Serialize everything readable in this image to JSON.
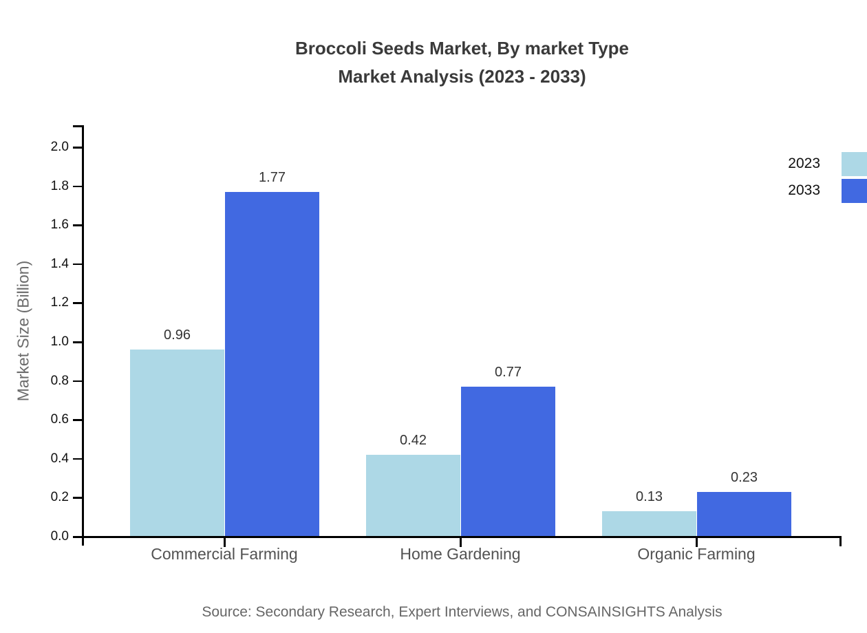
{
  "title": {
    "line1": "Broccoli Seeds Market, By market Type",
    "line2": "Market Analysis (2023 - 2033)"
  },
  "source": "Source: Secondary Research, Expert Interviews, and CONSAINSIGHTS Analysis",
  "chart_data": {
    "type": "bar",
    "title": "Broccoli Seeds Market, By market Type Market Analysis (2023 - 2033)",
    "categories": [
      "Commercial Farming",
      "Home Gardening",
      "Organic Farming"
    ],
    "series": [
      {
        "name": "2023",
        "color": "#ADD8E6",
        "values": [
          0.96,
          0.42,
          0.13
        ]
      },
      {
        "name": "2033",
        "color": "#4169E1",
        "values": [
          1.77,
          0.77,
          0.23
        ]
      }
    ],
    "xlabel": "",
    "ylabel": "Market Size (Billion)",
    "ylim": [
      0.0,
      2.0
    ],
    "ytick_step": 0.2,
    "ytick_labels": [
      "0.0",
      "0.2",
      "0.4",
      "0.6",
      "0.8",
      "1.0",
      "1.2",
      "1.4",
      "1.6",
      "1.8",
      "2.0"
    ],
    "value_labels": [
      [
        "0.96",
        "0.42",
        "0.13"
      ],
      [
        "1.77",
        "0.77",
        "0.23"
      ]
    ],
    "grid": false,
    "legend_position": "top-right",
    "colors": {
      "axis": "#000000",
      "title_text": "#3a3a3a",
      "tick_text": "#111111",
      "label_text": "#525252",
      "source_text": "#666666"
    }
  }
}
